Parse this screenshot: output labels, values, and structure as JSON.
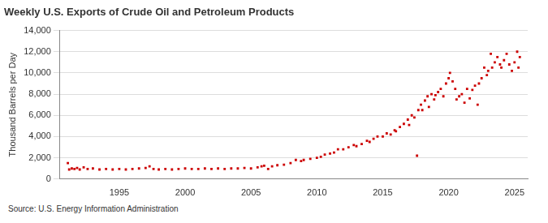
{
  "chart_data": {
    "type": "scatter",
    "title": "Weekly U.S. Exports of Crude Oil and Petroleum Products",
    "y_label": "Thousand Barrels per Day",
    "source": "Source: U.S. Energy Information Administration",
    "color": "#cc0000",
    "marker": "rect",
    "grid": true,
    "x": [
      1991.1,
      1991.2,
      1991.4,
      1991.6,
      1991.8,
      1992.0,
      1992.3,
      1992.6,
      1993.0,
      1993.5,
      1994.0,
      1994.5,
      1995.0,
      1995.5,
      1996.0,
      1996.5,
      1997.0,
      1997.3,
      1997.6,
      1998.0,
      1998.5,
      1999.0,
      1999.5,
      2000.0,
      2000.5,
      2001.0,
      2001.5,
      2002.0,
      2002.5,
      2003.0,
      2003.5,
      2004.0,
      2004.5,
      2005.0,
      2005.5,
      2005.8,
      2006.0,
      2006.3,
      2006.6,
      2007.0,
      2007.5,
      2008.0,
      2008.4,
      2008.8,
      2009.0,
      2009.5,
      2010.0,
      2010.3,
      2010.6,
      2011.0,
      2011.3,
      2011.6,
      2012.0,
      2012.4,
      2012.8,
      2013.0,
      2013.4,
      2013.8,
      2014.0,
      2014.3,
      2014.6,
      2015.0,
      2015.3,
      2015.6,
      2015.9,
      2016.0,
      2016.3,
      2016.6,
      2016.9,
      2017.0,
      2017.2,
      2017.4,
      2017.6,
      2017.7,
      2017.9,
      2018.0,
      2018.2,
      2018.4,
      2018.5,
      2018.7,
      2018.9,
      2019.0,
      2019.2,
      2019.4,
      2019.6,
      2019.8,
      2020.0,
      2020.1,
      2020.3,
      2020.5,
      2020.6,
      2020.8,
      2021.0,
      2021.2,
      2021.4,
      2021.6,
      2021.8,
      2022.0,
      2022.2,
      2022.3,
      2022.5,
      2022.7,
      2022.9,
      2023.0,
      2023.2,
      2023.3,
      2023.5,
      2023.7,
      2023.9,
      2024.0,
      2024.2,
      2024.4,
      2024.6,
      2024.8,
      2025.0,
      2025.2,
      2025.3,
      2025.4
    ],
    "values": [
      1500,
      900,
      1000,
      950,
      1050,
      900,
      1100,
      950,
      1000,
      900,
      950,
      900,
      950,
      900,
      950,
      1000,
      1050,
      1200,
      950,
      900,
      950,
      900,
      950,
      1000,
      950,
      950,
      1000,
      950,
      1000,
      950,
      1000,
      1000,
      1050,
      1000,
      1100,
      1200,
      1250,
      950,
      1200,
      1300,
      1350,
      1500,
      1800,
      1700,
      1800,
      1900,
      2000,
      2100,
      2300,
      2400,
      2500,
      2800,
      2800,
      3000,
      3200,
      3100,
      3300,
      3600,
      3500,
      3800,
      4000,
      4000,
      4300,
      4200,
      4600,
      4500,
      4900,
      5200,
      5600,
      5100,
      6000,
      5800,
      2200,
      6500,
      7000,
      6500,
      7400,
      7800,
      6800,
      8000,
      7500,
      7900,
      8200,
      8500,
      7800,
      9000,
      9500,
      10000,
      9200,
      8500,
      7500,
      7800,
      8000,
      7200,
      8500,
      7600,
      8400,
      8800,
      7000,
      9000,
      9500,
      10500,
      9800,
      10200,
      11800,
      10500,
      11000,
      11500,
      10800,
      10500,
      11200,
      11800,
      10800,
      10200,
      11000,
      12000,
      10500,
      11500
    ],
    "xlim": [
      1990.5,
      2026
    ],
    "xticks": [
      1995,
      2000,
      2005,
      2010,
      2015,
      2020,
      2025
    ],
    "ylim": [
      0,
      14000
    ],
    "yticks": [
      0,
      {
        "value": 2000,
        "label": "2,000"
      },
      {
        "value": 4000,
        "label": "4,000"
      },
      {
        "value": 6000,
        "label": "6,000"
      },
      {
        "value": 8000,
        "label": "8,000"
      },
      {
        "value": 10000,
        "label": "10,000"
      },
      {
        "value": 12000,
        "label": "12,000"
      },
      {
        "value": 14000,
        "label": "14,000"
      }
    ]
  }
}
